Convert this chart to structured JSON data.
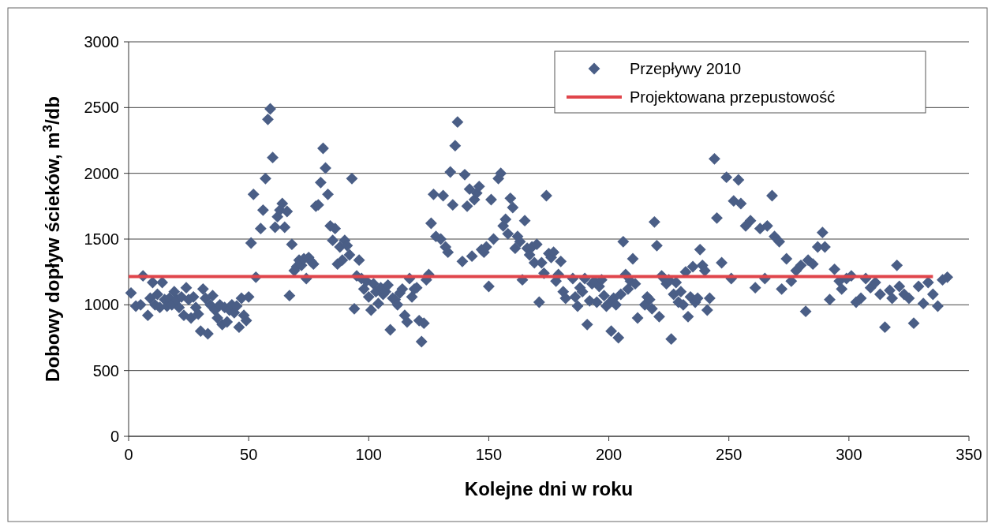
{
  "chart_data": {
    "type": "scatter",
    "xlabel": "Kolejne dni w roku",
    "ylabel": "Dobowy dopływ ścieków, m$^{3}$/db",
    "xlim": [
      0,
      350
    ],
    "xticks": [
      0,
      50,
      100,
      150,
      200,
      250,
      300,
      350
    ],
    "ylim": [
      0,
      3000
    ],
    "yticks": [
      0,
      500,
      1000,
      1500,
      2000,
      2500,
      3000
    ],
    "grid": "y",
    "legend": "top right",
    "series": [
      {
        "name": "Przepływy 2010",
        "color": "#4a5e86",
        "marker": "diamond",
        "x": [
          1,
          3,
          5,
          6,
          8,
          9,
          10,
          11,
          12,
          13,
          14,
          15,
          16,
          17,
          18,
          19,
          20,
          21,
          22,
          23,
          24,
          25,
          26,
          27,
          28,
          29,
          30,
          31,
          32,
          33,
          34,
          35,
          36,
          37,
          38,
          39,
          40,
          41,
          42,
          43,
          44,
          45,
          46,
          47,
          48,
          49,
          50,
          51,
          52,
          53,
          55,
          56,
          57,
          58,
          59,
          60,
          61,
          62,
          63,
          64,
          65,
          66,
          67,
          68,
          69,
          70,
          71,
          72,
          73,
          74,
          75,
          76,
          77,
          78,
          79,
          80,
          81,
          82,
          83,
          84,
          85,
          86,
          87,
          88,
          89,
          90,
          91,
          92,
          93,
          94,
          95,
          96,
          97,
          98,
          99,
          100,
          101,
          102,
          103,
          104,
          105,
          106,
          107,
          108,
          109,
          110,
          111,
          112,
          113,
          114,
          115,
          116,
          117,
          118,
          119,
          120,
          121,
          122,
          123,
          124,
          125,
          126,
          127,
          128,
          130,
          131,
          132,
          133,
          134,
          135,
          136,
          137,
          139,
          140,
          141,
          142,
          143,
          144,
          145,
          146,
          147,
          148,
          149,
          150,
          151,
          152,
          154,
          155,
          156,
          157,
          158,
          159,
          160,
          161,
          162,
          163,
          164,
          165,
          166,
          167,
          168,
          169,
          170,
          171,
          172,
          173,
          174,
          175,
          176,
          177,
          178,
          179,
          180,
          181,
          182,
          185,
          186,
          187,
          188,
          189,
          190,
          191,
          192,
          193,
          194,
          195,
          196,
          197,
          198,
          199,
          200,
          201,
          202,
          203,
          204,
          205,
          206,
          207,
          208,
          209,
          210,
          211,
          212,
          215,
          216,
          217,
          218,
          219,
          220,
          221,
          222,
          223,
          224,
          225,
          226,
          227,
          228,
          229,
          230,
          231,
          232,
          233,
          234,
          235,
          236,
          237,
          238,
          239,
          240,
          241,
          242,
          244,
          245,
          247,
          249,
          251,
          252,
          254,
          255,
          257,
          259,
          261,
          263,
          265,
          266,
          268,
          269,
          271,
          272,
          274,
          276,
          278,
          280,
          282,
          283,
          285,
          287,
          289,
          290,
          292,
          294,
          296,
          297,
          299,
          301,
          303,
          305,
          307,
          309,
          311,
          313,
          315,
          317,
          318,
          320,
          321,
          323,
          325,
          327,
          329,
          331,
          333,
          335,
          337,
          339,
          341
        ],
        "values": [
          1090,
          990,
          1000,
          1220,
          920,
          1050,
          1170,
          1000,
          1080,
          980,
          1170,
          1040,
          990,
          1050,
          1000,
          1100,
          1040,
          980,
          1060,
          920,
          1130,
          1040,
          900,
          1060,
          980,
          930,
          800,
          1120,
          1050,
          780,
          1000,
          1070,
          960,
          900,
          1000,
          850,
          980,
          870,
          960,
          1000,
          940,
          990,
          830,
          1050,
          920,
          880,
          1060,
          1470,
          1840,
          1210,
          1580,
          1720,
          1960,
          2410,
          2490,
          2120,
          1590,
          1670,
          1720,
          1770,
          1590,
          1710,
          1070,
          1460,
          1260,
          1290,
          1340,
          1300,
          1350,
          1200,
          1360,
          1330,
          1310,
          1750,
          1760,
          1930,
          2190,
          2040,
          1840,
          1600,
          1490,
          1580,
          1310,
          1440,
          1340,
          1490,
          1450,
          1380,
          1960,
          970,
          1220,
          1340,
          1200,
          1120,
          1180,
          1060,
          960,
          1160,
          1100,
          1010,
          1130,
          1080,
          1100,
          1150,
          810,
          1050,
          1040,
          1000,
          1090,
          1120,
          920,
          870,
          1200,
          1060,
          1120,
          1130,
          880,
          720,
          860,
          1190,
          1230,
          1620,
          1840,
          1520,
          1500,
          1830,
          1440,
          1400,
          2010,
          1760,
          2210,
          2390,
          1330,
          1990,
          1750,
          1880,
          1370,
          1800,
          1850,
          1900,
          1420,
          1400,
          1440,
          1140,
          1800,
          1500,
          1960,
          2000,
          1600,
          1650,
          1540,
          1810,
          1740,
          1430,
          1520,
          1480,
          1190,
          1640,
          1430,
          1380,
          1440,
          1320,
          1460,
          1020,
          1320,
          1240,
          1830,
          1390,
          1360,
          1400,
          1180,
          1230,
          1330,
          1100,
          1050,
          1200,
          1060,
          990,
          1130,
          1100,
          1200,
          850,
          1030,
          1160,
          1180,
          1020,
          1140,
          1190,
          1070,
          990,
          1010,
          800,
          1050,
          1000,
          750,
          1080,
          1480,
          1230,
          1120,
          1180,
          1350,
          1160,
          900,
          1000,
          1060,
          1040,
          970,
          1630,
          1450,
          910,
          1220,
          1200,
          1160,
          1190,
          740,
          1080,
          1170,
          1020,
          1100,
          1000,
          1250,
          910,
          1060,
          1290,
          1020,
          1050,
          1420,
          1300,
          1260,
          960,
          1050,
          2110,
          1660,
          1320,
          1970,
          1200,
          1790,
          1950,
          1770,
          1600,
          1640,
          1130,
          1580,
          1200,
          1600,
          1830,
          1520,
          1480,
          1120,
          1350,
          1180,
          1260,
          1300,
          950,
          1340,
          1310,
          1440,
          1550,
          1440,
          1040,
          1270,
          1180,
          1120,
          1200,
          1220,
          1020,
          1050,
          1200,
          1130,
          1170,
          1080,
          830,
          1110,
          1050,
          1300,
          1140,
          1080,
          1050,
          860,
          1140,
          1010,
          1170,
          1080,
          990,
          1190,
          1210
        ]
      },
      {
        "name": "Projektowana przepustowość",
        "color": "#e0454b",
        "type": "line",
        "marker": "none",
        "x": [
          0,
          335
        ],
        "values": [
          1215,
          1215
        ]
      }
    ]
  }
}
